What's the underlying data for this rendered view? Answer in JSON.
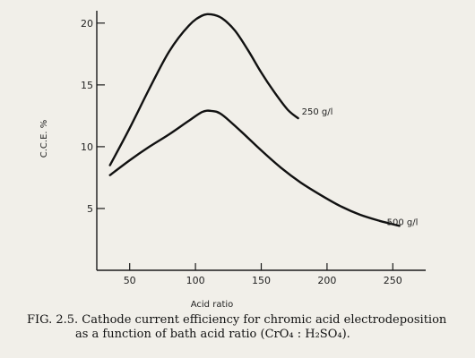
{
  "chart_data": {
    "type": "line",
    "xlabel": "Acid ratio",
    "ylabel": "C.C.E. %",
    "xlim": [
      25,
      275
    ],
    "ylim": [
      0,
      21
    ],
    "xticks": [
      50,
      100,
      150,
      200,
      250
    ],
    "xtick_labels": [
      "50",
      "100",
      "150",
      "200",
      "250"
    ],
    "yticks": [
      5,
      10,
      15,
      20
    ],
    "ytick_labels": [
      "5",
      "10",
      "15",
      "20"
    ],
    "grid": false,
    "series": [
      {
        "name": "250 g/l",
        "x": [
          35,
          50,
          65,
          80,
          95,
          105,
          112,
          120,
          130,
          140,
          150,
          160,
          170,
          178
        ],
        "y": [
          8.5,
          11.5,
          14.7,
          17.7,
          19.8,
          20.6,
          20.7,
          20.4,
          19.4,
          17.8,
          16.0,
          14.4,
          13.0,
          12.3
        ]
      },
      {
        "name": "500 g/l",
        "x": [
          35,
          50,
          65,
          80,
          95,
          105,
          112,
          120,
          135,
          150,
          165,
          180,
          195,
          210,
          225,
          240,
          255
        ],
        "y": [
          7.7,
          8.9,
          10.0,
          11.0,
          12.1,
          12.8,
          12.9,
          12.6,
          11.2,
          9.7,
          8.3,
          7.1,
          6.1,
          5.2,
          4.5,
          4.0,
          3.6
        ]
      }
    ],
    "annotations": [
      "250 g/l",
      "500 g/l"
    ]
  },
  "caption": {
    "line1": "FIG. 2.5. Cathode current efficiency for chromic acid electrodeposition",
    "line2": "as a function of bath acid ratio (CrO₄ : H₂SO₄)."
  }
}
